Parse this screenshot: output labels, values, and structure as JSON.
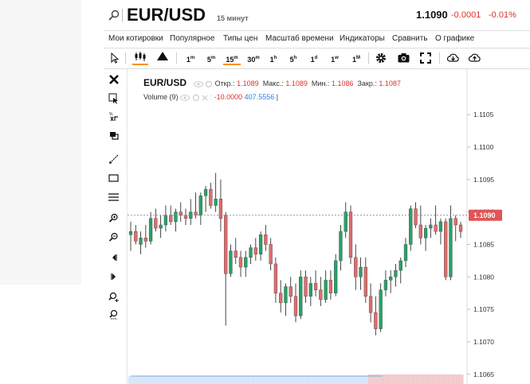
{
  "header": {
    "symbol": "EUR/USD",
    "timeframe": "15 минут",
    "last_price": "1.1090",
    "change": "-0.0001",
    "change_percent": "-0.01%"
  },
  "menu": [
    "Мои котировки",
    "Популярное",
    "Типы цен",
    "Масштаб времени",
    "Индикаторы",
    "Сравнить",
    "О графике"
  ],
  "toolbar": {
    "intervals": [
      {
        "base": "1",
        "sup": "m",
        "active": false
      },
      {
        "base": "5",
        "sup": "m",
        "active": false
      },
      {
        "base": "15",
        "sup": "m",
        "active": true
      },
      {
        "base": "30",
        "sup": "m",
        "active": false
      },
      {
        "base": "1",
        "sup": "h",
        "active": false
      },
      {
        "base": "5",
        "sup": "h",
        "active": false
      },
      {
        "base": "1",
        "sup": "d",
        "active": false
      },
      {
        "base": "1",
        "sup": "w",
        "active": false
      },
      {
        "base": "1",
        "sup": "M",
        "active": false
      }
    ]
  },
  "legend": {
    "symbol": "EUR/USD",
    "open_label": "Откр.:",
    "open": "1.1089",
    "high_label": "Макс.:",
    "high": "1.1089",
    "low_label": "Мин.:",
    "low": "1.1086",
    "close_label": "Закр.:",
    "close": "1.1087",
    "volume_label": "Volume (9)",
    "volume_value1": "-10.0000",
    "volume_value2": "407.5556"
  },
  "colors": {
    "up": "#26a269",
    "down": "#e06c6c",
    "accent": "#f7931a",
    "negative": "#e0312c"
  },
  "chart_data": {
    "type": "candlestick",
    "y_ticks": [
      "1.1105",
      "1.1100",
      "1.1095",
      "1.1090",
      "1.1085",
      "1.1080",
      "1.1075",
      "1.1070",
      "1.1065"
    ],
    "ylim": [
      1.10635,
      1.1112
    ],
    "last_price_label": "1.1090",
    "last_price_line": 1.10895,
    "candles": [
      {
        "o": 1.10865,
        "h": 1.10885,
        "l": 1.1084,
        "c": 1.1087
      },
      {
        "o": 1.1087,
        "h": 1.1088,
        "l": 1.1085,
        "c": 1.10855
      },
      {
        "o": 1.1085,
        "h": 1.1087,
        "l": 1.10835,
        "c": 1.1086
      },
      {
        "o": 1.1086,
        "h": 1.1088,
        "l": 1.10845,
        "c": 1.10855
      },
      {
        "o": 1.10855,
        "h": 1.109,
        "l": 1.1085,
        "c": 1.1089
      },
      {
        "o": 1.1089,
        "h": 1.10905,
        "l": 1.1087,
        "c": 1.10875
      },
      {
        "o": 1.10875,
        "h": 1.10895,
        "l": 1.1086,
        "c": 1.1088
      },
      {
        "o": 1.1088,
        "h": 1.1091,
        "l": 1.1087,
        "c": 1.10895
      },
      {
        "o": 1.10895,
        "h": 1.1091,
        "l": 1.1088,
        "c": 1.10885
      },
      {
        "o": 1.10885,
        "h": 1.10905,
        "l": 1.1087,
        "c": 1.109
      },
      {
        "o": 1.109,
        "h": 1.10915,
        "l": 1.10885,
        "c": 1.10895
      },
      {
        "o": 1.10895,
        "h": 1.10905,
        "l": 1.1088,
        "c": 1.1089
      },
      {
        "o": 1.1089,
        "h": 1.1092,
        "l": 1.1088,
        "c": 1.109
      },
      {
        "o": 1.109,
        "h": 1.1093,
        "l": 1.1089,
        "c": 1.10895
      },
      {
        "o": 1.10895,
        "h": 1.1093,
        "l": 1.1088,
        "c": 1.10925
      },
      {
        "o": 1.10925,
        "h": 1.1094,
        "l": 1.109,
        "c": 1.10935
      },
      {
        "o": 1.10935,
        "h": 1.10945,
        "l": 1.10905,
        "c": 1.1091
      },
      {
        "o": 1.1091,
        "h": 1.1096,
        "l": 1.109,
        "c": 1.1092
      },
      {
        "o": 1.1092,
        "h": 1.1095,
        "l": 1.1087,
        "c": 1.1089
      },
      {
        "o": 1.10895,
        "h": 1.109,
        "l": 1.10725,
        "c": 1.10805
      },
      {
        "o": 1.10805,
        "h": 1.1085,
        "l": 1.108,
        "c": 1.1084
      },
      {
        "o": 1.1084,
        "h": 1.1086,
        "l": 1.1082,
        "c": 1.1083
      },
      {
        "o": 1.1083,
        "h": 1.1084,
        "l": 1.108,
        "c": 1.10815
      },
      {
        "o": 1.10815,
        "h": 1.1084,
        "l": 1.108,
        "c": 1.1083
      },
      {
        "o": 1.1083,
        "h": 1.1085,
        "l": 1.1082,
        "c": 1.10845
      },
      {
        "o": 1.10845,
        "h": 1.1086,
        "l": 1.10825,
        "c": 1.10835
      },
      {
        "o": 1.10835,
        "h": 1.1087,
        "l": 1.10825,
        "c": 1.10865
      },
      {
        "o": 1.10865,
        "h": 1.1088,
        "l": 1.1084,
        "c": 1.1085
      },
      {
        "o": 1.1085,
        "h": 1.1086,
        "l": 1.1081,
        "c": 1.1082
      },
      {
        "o": 1.1082,
        "h": 1.1083,
        "l": 1.1076,
        "c": 1.10775
      },
      {
        "o": 1.10775,
        "h": 1.10795,
        "l": 1.10745,
        "c": 1.1076
      },
      {
        "o": 1.1076,
        "h": 1.1079,
        "l": 1.1074,
        "c": 1.10785
      },
      {
        "o": 1.10785,
        "h": 1.108,
        "l": 1.1076,
        "c": 1.1077
      },
      {
        "o": 1.1077,
        "h": 1.1079,
        "l": 1.1073,
        "c": 1.1074
      },
      {
        "o": 1.1074,
        "h": 1.1081,
        "l": 1.10735,
        "c": 1.108
      },
      {
        "o": 1.108,
        "h": 1.1081,
        "l": 1.1076,
        "c": 1.1077
      },
      {
        "o": 1.1077,
        "h": 1.108,
        "l": 1.10755,
        "c": 1.1079
      },
      {
        "o": 1.1079,
        "h": 1.1081,
        "l": 1.1077,
        "c": 1.1078
      },
      {
        "o": 1.1078,
        "h": 1.108,
        "l": 1.10755,
        "c": 1.10765
      },
      {
        "o": 1.10765,
        "h": 1.1081,
        "l": 1.1076,
        "c": 1.10795
      },
      {
        "o": 1.10795,
        "h": 1.1081,
        "l": 1.10765,
        "c": 1.10775
      },
      {
        "o": 1.10775,
        "h": 1.10835,
        "l": 1.1077,
        "c": 1.10825
      },
      {
        "o": 1.10825,
        "h": 1.1088,
        "l": 1.1081,
        "c": 1.1087
      },
      {
        "o": 1.1087,
        "h": 1.10915,
        "l": 1.1086,
        "c": 1.109
      },
      {
        "o": 1.109,
        "h": 1.1091,
        "l": 1.1082,
        "c": 1.1083
      },
      {
        "o": 1.1083,
        "h": 1.1085,
        "l": 1.1078,
        "c": 1.108
      },
      {
        "o": 1.108,
        "h": 1.1083,
        "l": 1.1078,
        "c": 1.10815
      },
      {
        "o": 1.10815,
        "h": 1.1083,
        "l": 1.1076,
        "c": 1.1077
      },
      {
        "o": 1.1077,
        "h": 1.1079,
        "l": 1.1073,
        "c": 1.10745
      },
      {
        "o": 1.10745,
        "h": 1.1077,
        "l": 1.1071,
        "c": 1.1072
      },
      {
        "o": 1.1072,
        "h": 1.1079,
        "l": 1.10715,
        "c": 1.1078
      },
      {
        "o": 1.1078,
        "h": 1.1081,
        "l": 1.1077,
        "c": 1.10795
      },
      {
        "o": 1.10795,
        "h": 1.1081,
        "l": 1.10775,
        "c": 1.108
      },
      {
        "o": 1.108,
        "h": 1.1082,
        "l": 1.10785,
        "c": 1.1081
      },
      {
        "o": 1.1081,
        "h": 1.1083,
        "l": 1.1079,
        "c": 1.10825
      },
      {
        "o": 1.10825,
        "h": 1.1086,
        "l": 1.10815,
        "c": 1.1085
      },
      {
        "o": 1.1085,
        "h": 1.1091,
        "l": 1.1084,
        "c": 1.10905
      },
      {
        "o": 1.10905,
        "h": 1.10915,
        "l": 1.10875,
        "c": 1.1088
      },
      {
        "o": 1.1088,
        "h": 1.1091,
        "l": 1.1085,
        "c": 1.1086
      },
      {
        "o": 1.1086,
        "h": 1.1088,
        "l": 1.1084,
        "c": 1.10875
      },
      {
        "o": 1.10875,
        "h": 1.1089,
        "l": 1.1086,
        "c": 1.1088
      },
      {
        "o": 1.1088,
        "h": 1.1091,
        "l": 1.10865,
        "c": 1.1087
      },
      {
        "o": 1.1087,
        "h": 1.1089,
        "l": 1.1085,
        "c": 1.10885
      },
      {
        "o": 1.10885,
        "h": 1.1089,
        "l": 1.10795,
        "c": 1.108
      },
      {
        "o": 1.108,
        "h": 1.1091,
        "l": 1.10795,
        "c": 1.1089
      },
      {
        "o": 1.1089,
        "h": 1.10895,
        "l": 1.10855,
        "c": 1.1088
      },
      {
        "o": 1.1088,
        "h": 1.10885,
        "l": 1.1086,
        "c": 1.1087
      }
    ],
    "volume_bars": {
      "count": 67,
      "down_from_index": 48
    }
  }
}
